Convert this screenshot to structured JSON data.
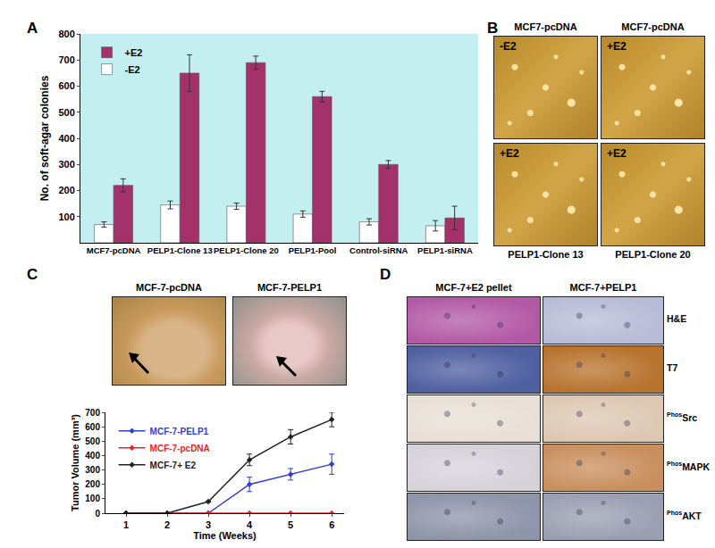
{
  "panel_labels": [
    "A",
    "B",
    "C",
    "D"
  ],
  "chart_data": [
    {
      "type": "bar",
      "label": "A",
      "y_label": "No. of soft-agar colonies",
      "categories": [
        "MCF7-pcDNA",
        "PELP1-Clone 13",
        "PELP1-Clone 20",
        "PELP1-Pool",
        "Control-siRNA",
        "PELP1-siRNA"
      ],
      "series": [
        {
          "name": "-E2",
          "color": "#ffffff",
          "values": [
            70,
            145,
            140,
            110,
            80,
            65
          ],
          "errors": [
            10,
            15,
            12,
            12,
            12,
            20
          ]
        },
        {
          "name": "+E2",
          "color": "#a3316a",
          "values": [
            220,
            650,
            690,
            560,
            300,
            95
          ],
          "errors": [
            25,
            70,
            25,
            20,
            15,
            45
          ]
        }
      ],
      "ylim": [
        0,
        800
      ],
      "yticks": [
        100,
        200,
        300,
        400,
        500,
        600,
        700,
        800
      ],
      "grid": false,
      "legend": "top left"
    },
    {
      "type": "line",
      "label": "C",
      "x_label": "Time (Weeks)",
      "y_label": "Tumor Volume (mm³)",
      "x": [
        1,
        2,
        3,
        4,
        5,
        6
      ],
      "series": [
        {
          "name": "MCF-7-PELP1",
          "color": "#2f3fcf",
          "values": [
            0,
            0,
            0,
            200,
            270,
            340
          ],
          "errors": [
            0,
            0,
            0,
            50,
            40,
            70
          ]
        },
        {
          "name": "MCF-7-pcDNA",
          "color": "#e02828",
          "values": [
            0,
            0,
            0,
            0,
            0,
            0
          ]
        },
        {
          "name": "MCF-7+ E2",
          "color": "#222222",
          "values": [
            0,
            0,
            80,
            370,
            530,
            650
          ],
          "errors": [
            0,
            0,
            0,
            40,
            50,
            50
          ]
        }
      ],
      "xlim": [
        0.5,
        6.3
      ],
      "xticks": [
        1,
        2,
        3,
        4,
        5,
        6
      ],
      "ylim": [
        0,
        700
      ],
      "yticks": [
        0,
        100,
        200,
        300,
        400,
        500,
        600,
        700
      ],
      "grid": false,
      "legend": "top left",
      "marker": "diamond"
    }
  ],
  "photos": {
    "B": {
      "panels": [
        {
          "title": "MCF7-pcDNA",
          "condition": "-E2"
        },
        {
          "title": "MCF7-pcDNA",
          "condition": "+E2"
        },
        {
          "title": "PELP1-Clone 13",
          "condition": "+E2"
        },
        {
          "title": "PELP1-Clone 20",
          "condition": "+E2"
        }
      ]
    },
    "C": {
      "panels": [
        "MCF-7-pcDNA",
        "MCF-7-PELP1"
      ]
    },
    "D": {
      "columns": [
        "MCF-7+E2 pellet",
        "MCF-7+PELP1"
      ],
      "rows": [
        {
          "text": "H&E"
        },
        {
          "text": "T7"
        },
        {
          "superscript": "Phos",
          "text": "Src"
        },
        {
          "superscript": "Phos",
          "text": "MAPK"
        },
        {
          "superscript": "Phos",
          "text": "AKT"
        }
      ]
    }
  }
}
